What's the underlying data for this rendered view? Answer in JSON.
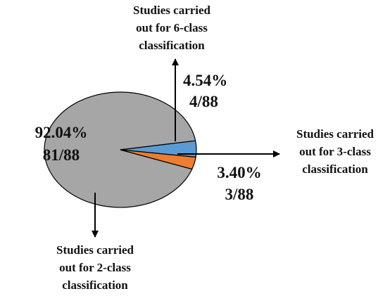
{
  "chart_data": {
    "type": "pie",
    "title": "",
    "slices": [
      {
        "key": "two_class",
        "percent": 92.04,
        "fraction": "81/88",
        "color": "#a6a6a6",
        "percent_label": "92.04%",
        "caption": [
          "Studies carried",
          "out for 2-class",
          "classification"
        ]
      },
      {
        "key": "three_class",
        "percent": 3.4,
        "fraction": "3/88",
        "color": "#ed7d31",
        "percent_label": "3.40%",
        "caption": [
          "Studies carried",
          "out for 3-class",
          "classification"
        ]
      },
      {
        "key": "six_class",
        "percent": 4.54,
        "fraction": "4/88",
        "color": "#5b9bd5",
        "percent_label": "4.54%",
        "caption": [
          "Studies carried",
          "out for 6-class",
          "classification"
        ]
      }
    ],
    "legend": "none",
    "shape": "ellipse"
  }
}
